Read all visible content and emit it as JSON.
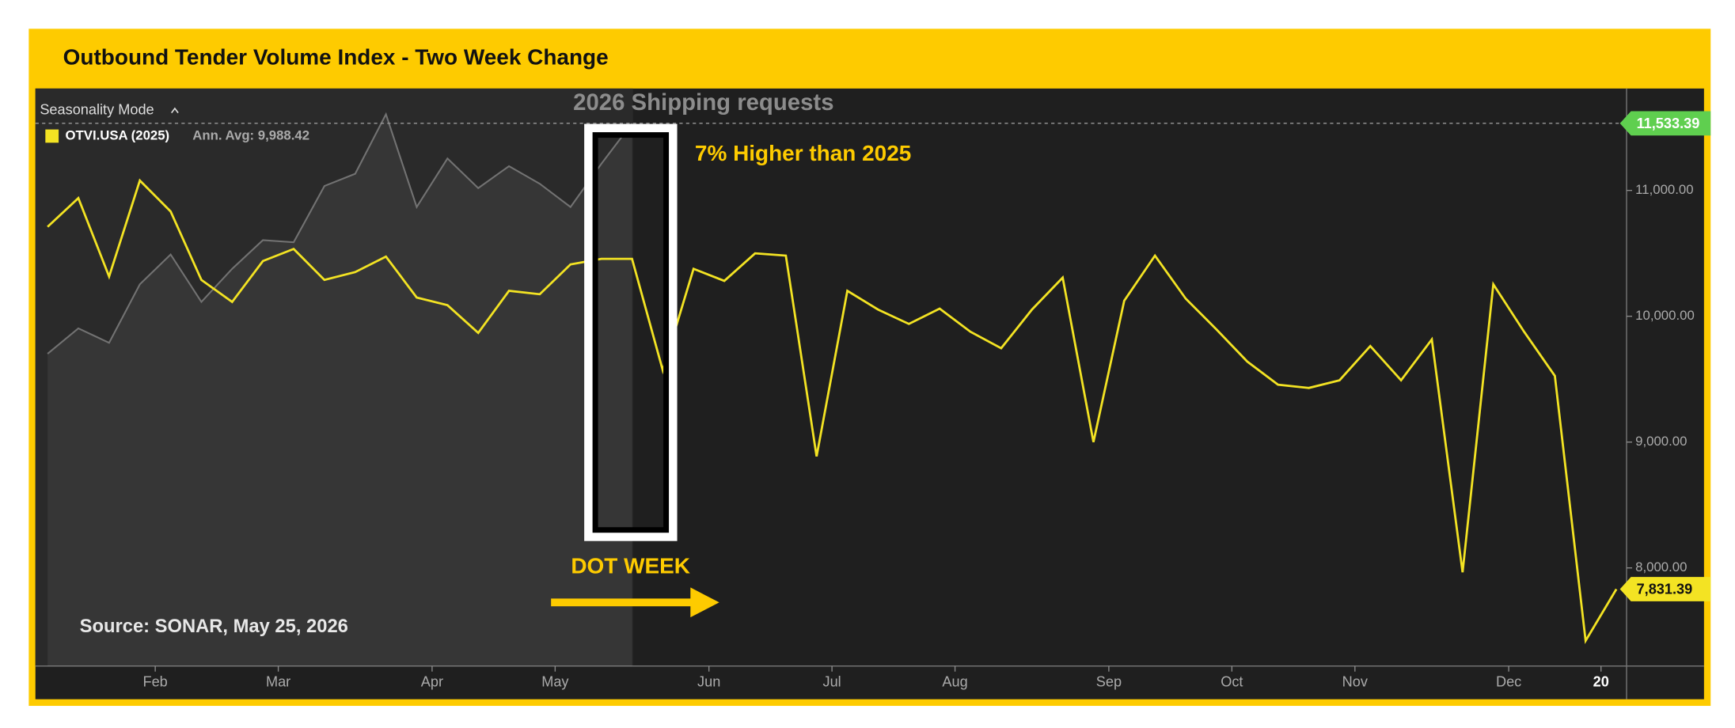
{
  "chart_data": {
    "type": "line",
    "title": "Outbound Tender Volume Index - Two Week Change",
    "mode_label": "Seasonality Mode",
    "legend_note": "Ann. Avg: 9,988.42",
    "annotations": [
      "2026 Shipping requests",
      "7% Higher than 2025",
      "DOT WEEK"
    ],
    "source": "Source: SONAR, May 25, 2026",
    "categories": [
      null,
      null,
      null,
      null,
      "Feb",
      null,
      null,
      null,
      "Mar",
      null,
      null,
      null,
      null,
      "Apr",
      null,
      null,
      null,
      "May",
      null,
      null,
      null,
      null,
      "Jun",
      null,
      null,
      null,
      "Jul",
      null,
      null,
      null,
      "Aug",
      null,
      null,
      null,
      null,
      "Sep",
      null,
      null,
      null,
      "Oct",
      null,
      null,
      null,
      "Nov",
      null,
      null,
      null,
      null,
      "Dec",
      null,
      null,
      "20"
    ],
    "series": [
      {
        "name": "OTVI.USA (2025)",
        "color": "#f3e323",
        "values": [
          10711,
          10939,
          10316,
          11079,
          10833,
          10289,
          10114,
          10439,
          10535,
          10289,
          10351,
          10474,
          10149,
          10088,
          9868,
          10202,
          10175,
          10412,
          10456,
          10456,
          9570,
          10377,
          10281,
          10500,
          10482,
          8886,
          10202,
          10053,
          9939,
          10061,
          9877,
          9746,
          10053,
          10307,
          9000,
          10123,
          10482,
          10140,
          9895,
          9640,
          9456,
          9430,
          9491,
          9763,
          9491,
          9816,
          7965,
          10254,
          9877,
          9526,
          7421,
          7831.39
        ],
        "value_labels": [
          null,
          null,
          null,
          null,
          null,
          null,
          null,
          null,
          null,
          null,
          null,
          null,
          null,
          null,
          null,
          null,
          null,
          null,
          null,
          null,
          null,
          null,
          null,
          null,
          null,
          null,
          null,
          null,
          null,
          null,
          null,
          null,
          null,
          null,
          null,
          null,
          null,
          null,
          null,
          null,
          null,
          null,
          null,
          null,
          null,
          null,
          null,
          null,
          null,
          null,
          null,
          "7,831.39"
        ]
      },
      {
        "color": "#727272",
        "values": [
          9702,
          9904,
          9789,
          10254,
          10491,
          10114,
          10377,
          10605,
          10588,
          11035,
          11132,
          11605,
          10868,
          11254,
          11018,
          11193,
          11053,
          10868,
          11211,
          11533.39,
          null,
          null,
          null,
          null,
          null,
          null,
          null,
          null,
          null,
          null,
          null,
          null,
          null,
          null,
          null,
          null,
          null,
          null,
          null,
          null,
          null,
          null,
          null,
          null,
          null,
          null,
          null,
          null,
          null,
          null,
          null,
          null
        ],
        "value_labels": [
          null,
          null,
          null,
          null,
          null,
          null,
          null,
          null,
          null,
          null,
          null,
          null,
          null,
          null,
          null,
          null,
          null,
          null,
          null,
          "11,533.39",
          null,
          null,
          null,
          null,
          null,
          null,
          null,
          null,
          null,
          null,
          null,
          null,
          null,
          null,
          null,
          null,
          null,
          null,
          null,
          null,
          null,
          null,
          null,
          null,
          null,
          null,
          null,
          null,
          null,
          null,
          null,
          null
        ]
      }
    ],
    "ylim": [
      7220,
      11810
    ],
    "yticks": [
      {
        "value": 8000,
        "label": "8,000.00"
      },
      {
        "value": 9000,
        "label": "9,000.00"
      },
      {
        "value": 10000,
        "label": "10,000.00"
      },
      {
        "value": 11000,
        "label": "11,000.00"
      }
    ],
    "grid": false
  }
}
